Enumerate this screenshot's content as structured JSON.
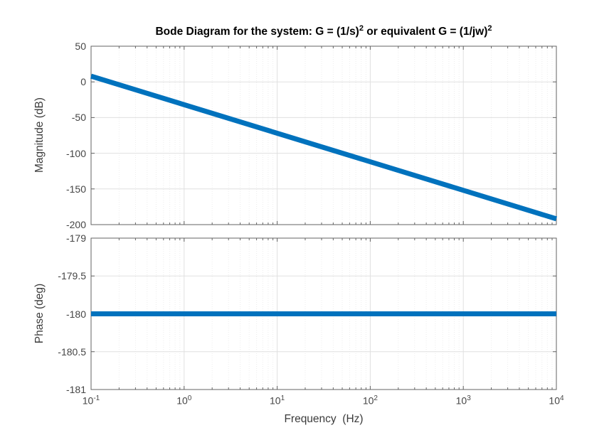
{
  "figure": {
    "title": {
      "part1": "Bode Diagram for the system: G = (1/s)",
      "sup1": "2",
      "part2": " or equivalent G = (1/jw)",
      "sup2": "2"
    },
    "xlabel": "Frequency  (Hz)",
    "background": "#ffffff"
  },
  "colors": {
    "line": "#0072BD",
    "axis": "#636363",
    "grid_major": "#e0e0e0",
    "grid_minor": "#ededed",
    "tick_text": "#454545",
    "label_text": "#3b3b3b",
    "title_text": "#000000"
  },
  "style": {
    "line_width": 7,
    "major_tick_len": 5,
    "minor_tick_len": 3
  },
  "chart_data": [
    {
      "name": "magnitude-subplot",
      "type": "line",
      "title": "Bode Diagram for the system: G = (1/s)^2 or equivalent G = (1/jw)^2",
      "xlabel": "Frequency  (Hz)",
      "ylabel": "Magnitude (dB)",
      "x_scale": "log",
      "xlim": [
        0.1,
        10000
      ],
      "ylim": [
        -200,
        50
      ],
      "yticks": [
        50,
        0,
        -50,
        -100,
        -150,
        -200
      ],
      "x_tick_exponents": [
        -1,
        0,
        1,
        2,
        3,
        4
      ],
      "grid": true,
      "minor_grid_x": true,
      "legend": "none",
      "slope_dB_per_decade": -40,
      "series": [
        {
          "name": "magnitude",
          "color": "#0072BD",
          "points": [
            [
              0.1,
              8.07
            ],
            [
              10000,
              -191.93
            ]
          ]
        }
      ]
    },
    {
      "name": "phase-subplot",
      "type": "line",
      "xlabel": "Frequency  (Hz)",
      "ylabel": "Phase (deg)",
      "x_scale": "log",
      "xlim": [
        0.1,
        10000
      ],
      "ylim": [
        -181,
        -179
      ],
      "yticks": [
        -179,
        -179.5,
        -180,
        -180.5,
        -181
      ],
      "x_tick_exponents": [
        -1,
        0,
        1,
        2,
        3,
        4
      ],
      "grid": true,
      "minor_grid_x": true,
      "legend": "none",
      "series": [
        {
          "name": "phase",
          "color": "#0072BD",
          "points": [
            [
              0.1,
              -180
            ],
            [
              10000,
              -180
            ]
          ]
        }
      ]
    }
  ]
}
